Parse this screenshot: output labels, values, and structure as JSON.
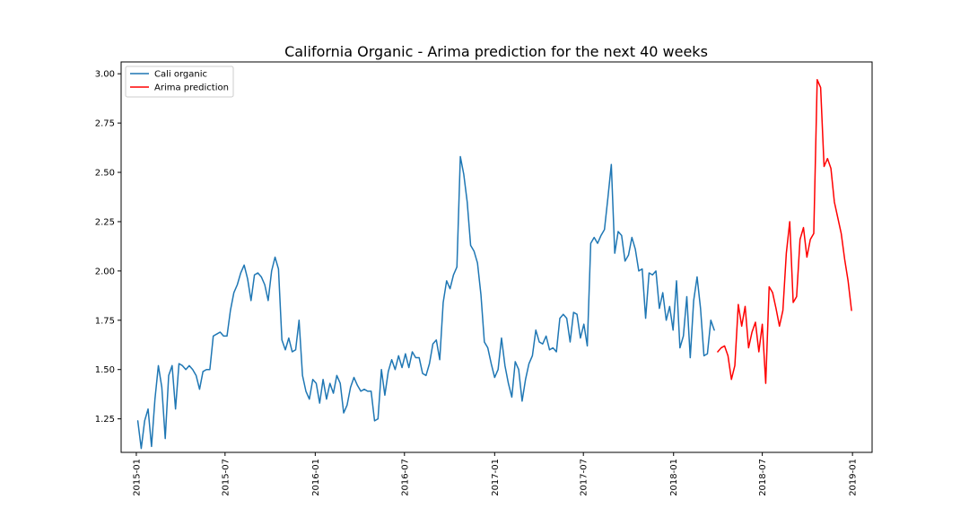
{
  "chart_data": {
    "type": "line",
    "title": "California Organic - Arima prediction for the next 40 weeks",
    "xlabel": "",
    "ylabel": "",
    "x_type": "date",
    "xlim": [
      "2014-12-01",
      "2019-02-10"
    ],
    "ylim": [
      1.08,
      3.06
    ],
    "x_ticks": [
      "2015-01",
      "2015-07",
      "2016-01",
      "2016-07",
      "2017-01",
      "2017-07",
      "2018-01",
      "2018-07",
      "2019-01"
    ],
    "y_ticks": [
      "1.25",
      "1.50",
      "1.75",
      "2.00",
      "2.25",
      "2.50",
      "2.75",
      "3.00"
    ],
    "grid": false,
    "legend": "top-left",
    "series": [
      {
        "name": "Cali organic",
        "color": "#1f77b4",
        "start_date": "2015-01-04",
        "step_days": 7,
        "values": [
          1.24,
          1.1,
          1.24,
          1.3,
          1.11,
          1.35,
          1.52,
          1.41,
          1.15,
          1.47,
          1.52,
          1.3,
          1.53,
          1.52,
          1.5,
          1.52,
          1.5,
          1.47,
          1.4,
          1.49,
          1.5,
          1.5,
          1.67,
          1.68,
          1.69,
          1.67,
          1.67,
          1.8,
          1.89,
          1.93,
          1.99,
          2.03,
          1.96,
          1.85,
          1.98,
          1.99,
          1.97,
          1.93,
          1.85,
          2.0,
          2.07,
          2.01,
          1.65,
          1.6,
          1.66,
          1.59,
          1.6,
          1.75,
          1.47,
          1.39,
          1.35,
          1.45,
          1.43,
          1.33,
          1.45,
          1.35,
          1.43,
          1.38,
          1.47,
          1.43,
          1.28,
          1.32,
          1.41,
          1.46,
          1.42,
          1.39,
          1.4,
          1.39,
          1.39,
          1.24,
          1.25,
          1.5,
          1.37,
          1.49,
          1.55,
          1.5,
          1.57,
          1.51,
          1.58,
          1.51,
          1.59,
          1.56,
          1.56,
          1.48,
          1.47,
          1.53,
          1.63,
          1.65,
          1.55,
          1.84,
          1.95,
          1.91,
          1.98,
          2.02,
          2.58,
          2.49,
          2.35,
          2.13,
          2.1,
          2.04,
          1.88,
          1.64,
          1.61,
          1.53,
          1.46,
          1.5,
          1.66,
          1.52,
          1.43,
          1.36,
          1.54,
          1.5,
          1.34,
          1.45,
          1.53,
          1.57,
          1.7,
          1.64,
          1.63,
          1.67,
          1.6,
          1.61,
          1.59,
          1.76,
          1.78,
          1.76,
          1.64,
          1.79,
          1.78,
          1.66,
          1.73,
          1.62,
          2.14,
          2.17,
          2.14,
          2.18,
          2.21,
          2.37,
          2.54,
          2.09,
          2.2,
          2.18,
          2.05,
          2.08,
          2.17,
          2.11,
          2.0,
          2.01,
          1.76,
          1.99,
          1.98,
          2.0,
          1.81,
          1.89,
          1.75,
          1.82,
          1.7,
          1.95,
          1.61,
          1.67,
          1.87,
          1.56,
          1.85,
          1.97,
          1.81,
          1.57,
          1.58,
          1.75,
          1.7
        ]
      },
      {
        "name": "Arima prediction",
        "color": "#ff0000",
        "start_date": "2018-04-01",
        "step_days": 7,
        "values": [
          1.59,
          1.61,
          1.62,
          1.57,
          1.45,
          1.52,
          1.83,
          1.72,
          1.82,
          1.61,
          1.69,
          1.74,
          1.59,
          1.73,
          1.43,
          1.92,
          1.89,
          1.81,
          1.72,
          1.8,
          2.09,
          2.25,
          1.84,
          1.87,
          2.16,
          2.22,
          2.07,
          2.16,
          2.19,
          2.97,
          2.93,
          2.53,
          2.57,
          2.52,
          2.35,
          2.27,
          2.19,
          2.06,
          1.95,
          1.8
        ]
      }
    ]
  }
}
